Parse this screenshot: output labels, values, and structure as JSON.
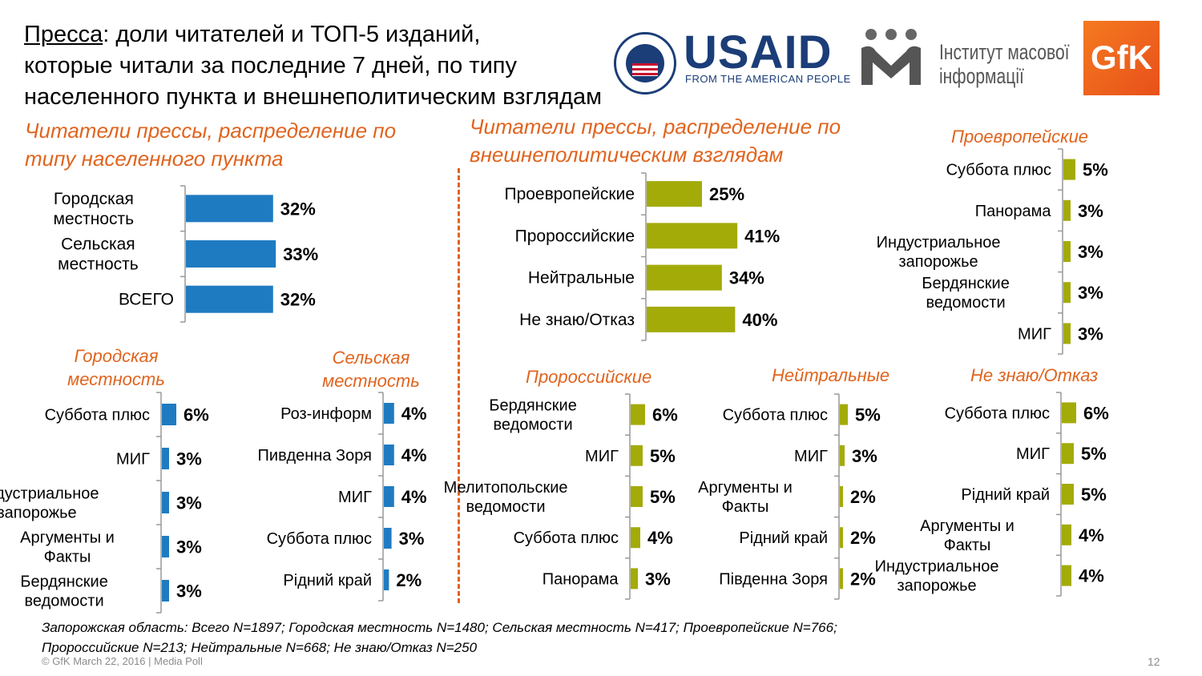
{
  "title": {
    "underlined": "Пресса",
    "line1_rest": ": доли читателей и ТОП-5 изданий,",
    "line2": "которые читали за последние 7 дней, по типу",
    "line3": "населенного пункта и внешнеполитическим взглядам"
  },
  "logos": {
    "usaid": "USAID",
    "usaid_tagline": "FROM THE AMERICAN PEOPLE",
    "imi_line1": "Інститут масової",
    "imi_line2": "інформації",
    "gfk": "GfK"
  },
  "sections": {
    "settlement_heading_1": "Читатели прессы, распределение по",
    "settlement_heading_2": "типу населенного пункта",
    "views_heading_1": "Читатели прессы, распределение по",
    "views_heading_2": "внешнеполитическим взглядам"
  },
  "subcharts_titles": {
    "urban_1": "Городская",
    "urban_2": "местность",
    "rural_1": "Сельская",
    "rural_2": "местность",
    "proeuropean": "Проевропейские",
    "prorussian": "Пророссийские",
    "neutral": "Нейтральные",
    "dontknow": "Не знаю/Отказ"
  },
  "colors": {
    "blue": "#1f7bc1",
    "olive": "#a3ab09",
    "orange": "#e0641e"
  },
  "chart_data": [
    {
      "id": "settlement",
      "type": "bar",
      "orientation": "horizontal",
      "categories": [
        [
          "Городская",
          "местность"
        ],
        [
          "Сельская",
          "местность"
        ],
        [
          "ВСЕГО"
        ]
      ],
      "values": [
        32,
        33,
        32
      ],
      "labels": [
        "32%",
        "33%",
        "32%"
      ],
      "color": "#1f7bc1"
    },
    {
      "id": "views",
      "type": "bar",
      "orientation": "horizontal",
      "categories": [
        [
          "Проевропейские"
        ],
        [
          "Пророссийские"
        ],
        [
          "Нейтральные"
        ],
        [
          "Не знаю/Отказ"
        ]
      ],
      "values": [
        25,
        41,
        34,
        40
      ],
      "labels": [
        "25%",
        "41%",
        "34%",
        "40%"
      ],
      "color": "#a3ab09"
    },
    {
      "id": "urban",
      "type": "bar",
      "orientation": "horizontal",
      "categories": [
        [
          "Суббота плюс"
        ],
        [
          "МИГ"
        ],
        [
          "Индустриальное",
          "запорожье"
        ],
        [
          "Аргументы и",
          "Факты"
        ],
        [
          "Бердянские",
          "ведомости"
        ]
      ],
      "values": [
        6,
        3,
        3,
        3,
        3
      ],
      "labels": [
        "6%",
        "3%",
        "3%",
        "3%",
        "3%"
      ],
      "color": "#1f7bc1"
    },
    {
      "id": "rural",
      "type": "bar",
      "orientation": "horizontal",
      "categories": [
        [
          "Роз-информ"
        ],
        [
          "Пивденна Зоря"
        ],
        [
          "МИГ"
        ],
        [
          "Суббота плюс"
        ],
        [
          "Рідний край"
        ]
      ],
      "values": [
        4,
        4,
        4,
        3,
        2
      ],
      "labels": [
        "4%",
        "4%",
        "4%",
        "3%",
        "2%"
      ],
      "color": "#1f7bc1"
    },
    {
      "id": "proeuropean",
      "type": "bar",
      "orientation": "horizontal",
      "categories": [
        [
          "Суббота плюс"
        ],
        [
          "Панорама"
        ],
        [
          "Индустриальное",
          "запорожье"
        ],
        [
          "Бердянские",
          "ведомости"
        ],
        [
          "МИГ"
        ]
      ],
      "values": [
        5,
        3,
        3,
        3,
        3
      ],
      "labels": [
        "5%",
        "3%",
        "3%",
        "3%",
        "3%"
      ],
      "color": "#a3ab09"
    },
    {
      "id": "prorussian",
      "type": "bar",
      "orientation": "horizontal",
      "categories": [
        [
          "Бердянские",
          "ведомости"
        ],
        [
          "МИГ"
        ],
        [
          "Мелитопольские",
          "ведомости"
        ],
        [
          "Суббота плюс"
        ],
        [
          "Панорама"
        ]
      ],
      "values": [
        6,
        5,
        5,
        4,
        3
      ],
      "labels": [
        "6%",
        "5%",
        "5%",
        "4%",
        "3%"
      ],
      "color": "#a3ab09"
    },
    {
      "id": "neutral",
      "type": "bar",
      "orientation": "horizontal",
      "categories": [
        [
          "Суббота плюс"
        ],
        [
          "МИГ"
        ],
        [
          "Аргументы и",
          "Факты"
        ],
        [
          "Рідний край"
        ],
        [
          "Південна Зоря"
        ]
      ],
      "values": [
        5,
        3,
        2,
        2,
        2
      ],
      "labels": [
        "5%",
        "3%",
        "2%",
        "2%",
        "2%"
      ],
      "color": "#a3ab09"
    },
    {
      "id": "dontknow",
      "type": "bar",
      "orientation": "horizontal",
      "categories": [
        [
          "Суббота плюс"
        ],
        [
          "МИГ"
        ],
        [
          "Рідний край"
        ],
        [
          "Аргументы и",
          "Факты"
        ],
        [
          "Индустриальное",
          "запорожье"
        ]
      ],
      "values": [
        6,
        5,
        5,
        4,
        4
      ],
      "labels": [
        "6%",
        "5%",
        "5%",
        "4%",
        "4%"
      ],
      "color": "#a3ab09"
    }
  ],
  "footnote": {
    "line1": "Запорожская область: Всего N=1897; Городская местность N=1480; Сельская местность N=417; Проевропейские N=766;",
    "line2": "Пророссийские N=213; Нейтральные N=668; Не знаю/Отказ N=250"
  },
  "copyright": "© GfK March 22, 2016 | Media Poll",
  "page_number": "12"
}
